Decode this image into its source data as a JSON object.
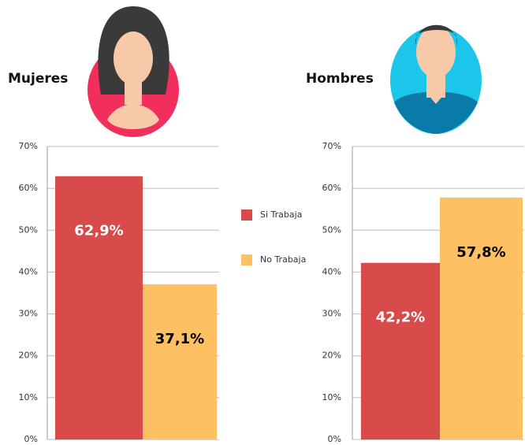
{
  "chart_data": [
    {
      "type": "bar",
      "title": "Mujeres",
      "series": [
        {
          "name": "Si Trabaja",
          "color": "#d94b4b",
          "values": [
            62.9
          ],
          "value_labels": [
            "62,9%"
          ]
        },
        {
          "name": "No Trabaja",
          "color": "#fdc062",
          "values": [
            37.1
          ],
          "value_labels": [
            "37,1%"
          ]
        }
      ],
      "ylim": [
        0,
        70
      ],
      "yticks": [
        {
          "value": 0,
          "label": "0%"
        },
        {
          "value": 10,
          "label": "10%"
        },
        {
          "value": 20,
          "label": "20%"
        },
        {
          "value": 30,
          "label": "30%"
        },
        {
          "value": 40,
          "label": "40%"
        },
        {
          "value": 50,
          "label": "50%"
        },
        {
          "value": 60,
          "label": "60%"
        },
        {
          "value": 70,
          "label": "70%"
        }
      ],
      "grid": true
    },
    {
      "type": "bar",
      "title": "Hombres",
      "series": [
        {
          "color": "#d94b4b",
          "values": [
            42.2
          ],
          "value_labels": [
            "42,2%"
          ]
        },
        {
          "color": "#fdc062",
          "values": [
            57.8
          ],
          "value_labels": [
            "57,8%"
          ]
        }
      ],
      "ylim": [
        0,
        70
      ],
      "yticks": [
        {
          "value": 0,
          "label": "0%"
        },
        {
          "value": 10,
          "label": "10%"
        },
        {
          "value": 20,
          "label": "20%"
        },
        {
          "value": 30,
          "label": "30%"
        },
        {
          "value": 40,
          "label": "40%"
        },
        {
          "value": 50,
          "label": "50%"
        },
        {
          "value": 60,
          "label": "60%"
        },
        {
          "value": 70,
          "label": "70%"
        }
      ],
      "grid": true
    }
  ]
}
